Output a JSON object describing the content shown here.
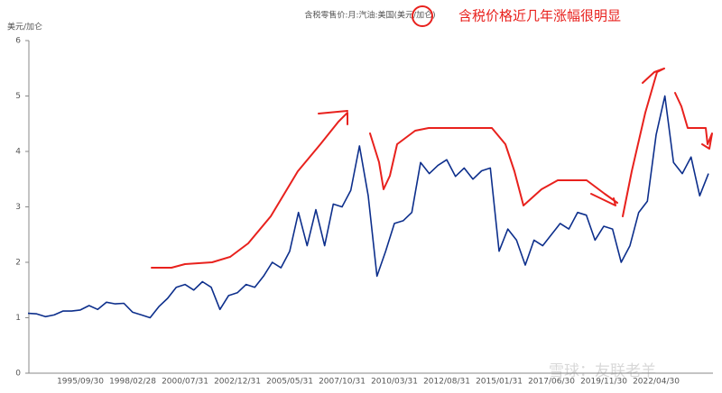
{
  "chart_data": {
    "type": "line",
    "title": "含税零售价:月:汽油:美国(美元/加仑)",
    "y_label": "美元/加仑",
    "annotation": "含税价格近几年涨幅很明显",
    "watermark": "雪球：友联老羊",
    "categories": [
      null,
      null,
      null,
      null,
      null,
      null,
      "1995/09/30",
      null,
      null,
      null,
      null,
      null,
      "1998/02/28",
      null,
      null,
      null,
      null,
      null,
      "2000/07/31",
      null,
      null,
      null,
      null,
      null,
      "2002/12/31",
      null,
      null,
      null,
      null,
      null,
      "2005/05/31",
      null,
      null,
      null,
      null,
      null,
      "2007/10/31",
      null,
      null,
      null,
      null,
      null,
      "2010/03/31",
      null,
      null,
      null,
      null,
      null,
      "2012/08/31",
      null,
      null,
      null,
      null,
      null,
      "2015/01/31",
      null,
      null,
      null,
      null,
      null,
      "2017/06/30",
      null,
      null,
      null,
      null,
      null,
      "2019/11/30",
      null,
      null,
      null,
      null,
      null,
      "2022/04/30",
      null,
      null,
      null,
      null,
      null,
      null
    ],
    "series": [
      {
        "name": "含税零售价:月:汽油:美国",
        "color": "#0d2f8c",
        "values": [
          1.08,
          1.07,
          1.02,
          1.05,
          1.12,
          1.12,
          1.14,
          1.22,
          1.15,
          1.28,
          1.25,
          1.26,
          1.1,
          1.05,
          1.0,
          1.2,
          1.35,
          1.55,
          1.6,
          1.5,
          1.65,
          1.55,
          1.15,
          1.4,
          1.45,
          1.6,
          1.55,
          1.75,
          2.0,
          1.9,
          2.2,
          2.9,
          2.3,
          2.95,
          2.3,
          3.05,
          3.0,
          3.3,
          4.1,
          3.2,
          1.75,
          2.2,
          2.7,
          2.75,
          2.9,
          3.8,
          3.6,
          3.75,
          3.85,
          3.55,
          3.7,
          3.5,
          3.65,
          3.7,
          2.2,
          2.6,
          2.4,
          1.95,
          2.4,
          2.3,
          2.5,
          2.7,
          2.6,
          2.9,
          2.85,
          2.4,
          2.65,
          2.6,
          2.0,
          2.3,
          2.9,
          3.1,
          4.3,
          5.0,
          3.8,
          3.6,
          3.9,
          3.2,
          3.6
        ]
      }
    ],
    "ylim": [
      0,
      6
    ],
    "yticks": [
      0,
      1,
      2,
      3,
      4,
      5,
      6
    ]
  }
}
